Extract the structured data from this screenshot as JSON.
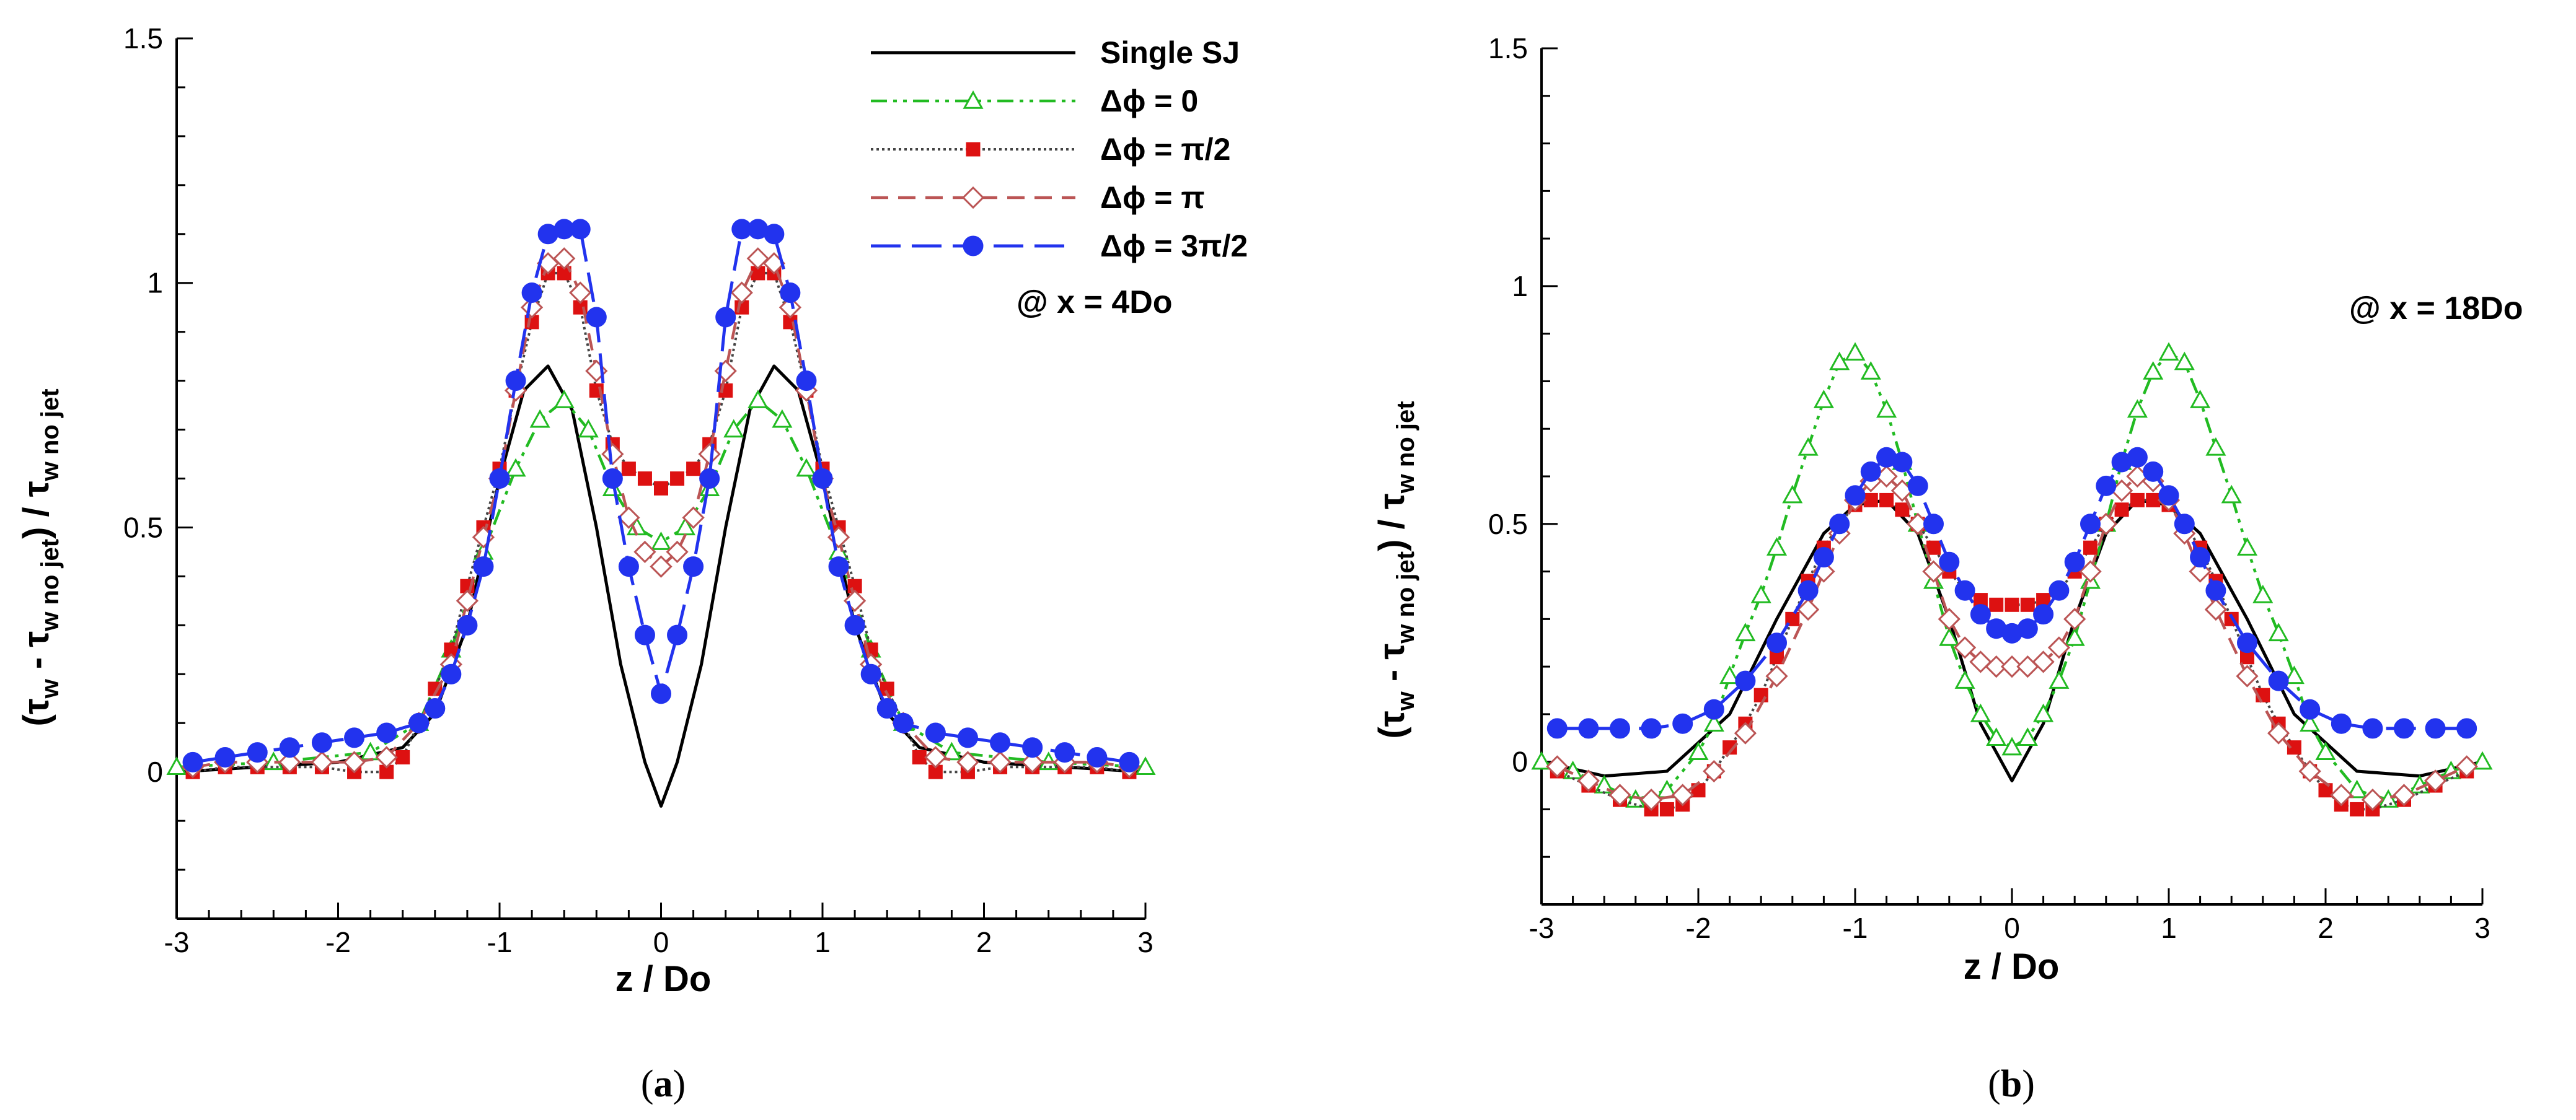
{
  "series_styles": [
    {
      "key": "single",
      "color": "#000000",
      "dash": "",
      "width": 5,
      "marker": "none",
      "legend": "Single SJ"
    },
    {
      "key": "p0",
      "color": "#22bb22",
      "dash": "26 10 6 10 6 10",
      "width": 4.5,
      "marker": "triangle",
      "legend": "Δϕ = 0"
    },
    {
      "key": "p90",
      "color": "#444444",
      "dash": "4 5",
      "width": 4,
      "marker": "square",
      "markerColor": "#dd1111",
      "legend": "Δϕ = π/2"
    },
    {
      "key": "p180",
      "color": "#bb5555",
      "dash": "28 16",
      "width": 4.5,
      "marker": "diamond",
      "legend": "Δϕ = π"
    },
    {
      "key": "p270",
      "color": "#2233ee",
      "dash": "48 18",
      "width": 5,
      "marker": "circle",
      "legend": "Δϕ = 3π/2"
    }
  ],
  "chart_data": [
    {
      "type": "line",
      "id": "a",
      "caption_label": "a",
      "annotation": "@ x = 4Do",
      "xlabel": "z / Do",
      "ylabel_main": "(τ",
      "ylabel_sub1": "w",
      "ylabel_mid": " - τ",
      "ylabel_sub2": "w no jet",
      "ylabel_end": ") / τ",
      "ylabel_sub3": "w no jet",
      "xlim": [
        -3,
        3
      ],
      "ylim": [
        -0.3,
        1.5
      ],
      "xticks": [
        -3,
        -2,
        -1,
        0,
        1,
        2,
        3
      ],
      "xtick_labels": [
        "-3",
        "-2",
        "-1",
        "0",
        "1",
        "2",
        "3"
      ],
      "yticks": [
        0,
        0.5,
        1,
        1.5
      ],
      "ytick_labels": [
        "0",
        "0.5",
        "1",
        "1.5"
      ],
      "series": {
        "single": {
          "x": [
            -3.0,
            -2.5,
            -2.0,
            -1.6,
            -1.4,
            -1.2,
            -1.0,
            -0.85,
            -0.7,
            -0.55,
            -0.4,
            -0.25,
            -0.1,
            0.0,
            0.1,
            0.25,
            0.4,
            0.55,
            0.7,
            0.85,
            1.0,
            1.2,
            1.4,
            1.6,
            2.0,
            2.5,
            3.0
          ],
          "y": [
            0.0,
            0.01,
            0.02,
            0.05,
            0.12,
            0.3,
            0.6,
            0.78,
            0.83,
            0.74,
            0.5,
            0.22,
            0.02,
            -0.07,
            0.02,
            0.22,
            0.5,
            0.74,
            0.83,
            0.78,
            0.6,
            0.3,
            0.12,
            0.05,
            0.02,
            0.01,
            0.0
          ]
        },
        "p0": {
          "x": [
            -3.0,
            -2.4,
            -1.8,
            -1.5,
            -1.3,
            -1.1,
            -0.9,
            -0.75,
            -0.6,
            -0.45,
            -0.3,
            -0.15,
            0.0,
            0.15,
            0.3,
            0.45,
            0.6,
            0.75,
            0.9,
            1.1,
            1.3,
            1.5,
            1.8,
            2.4,
            3.0
          ],
          "y": [
            0.01,
            0.02,
            0.04,
            0.1,
            0.25,
            0.45,
            0.62,
            0.72,
            0.76,
            0.7,
            0.58,
            0.5,
            0.47,
            0.5,
            0.58,
            0.7,
            0.76,
            0.72,
            0.62,
            0.45,
            0.25,
            0.1,
            0.04,
            0.02,
            0.01
          ]
        },
        "p90": {
          "x": [
            -2.9,
            -2.7,
            -2.5,
            -2.3,
            -2.1,
            -1.9,
            -1.7,
            -1.6,
            -1.5,
            -1.4,
            -1.3,
            -1.2,
            -1.1,
            -1.0,
            -0.9,
            -0.8,
            -0.7,
            -0.6,
            -0.5,
            -0.4,
            -0.3,
            -0.2,
            -0.1,
            0.0,
            0.1,
            0.2,
            0.3,
            0.4,
            0.5,
            0.6,
            0.7,
            0.8,
            0.9,
            1.0,
            1.1,
            1.2,
            1.3,
            1.4,
            1.5,
            1.6,
            1.7,
            1.9,
            2.1,
            2.3,
            2.5,
            2.7,
            2.9
          ],
          "y": [
            0.0,
            0.01,
            0.01,
            0.01,
            0.01,
            0.0,
            0.0,
            0.03,
            0.1,
            0.17,
            0.25,
            0.38,
            0.5,
            0.62,
            0.78,
            0.92,
            1.02,
            1.02,
            0.95,
            0.78,
            0.67,
            0.62,
            0.6,
            0.58,
            0.6,
            0.62,
            0.67,
            0.78,
            0.95,
            1.02,
            1.02,
            0.92,
            0.78,
            0.62,
            0.5,
            0.38,
            0.25,
            0.17,
            0.1,
            0.03,
            0.0,
            0.0,
            0.01,
            0.01,
            0.01,
            0.01,
            0.0
          ]
        },
        "p180": {
          "x": [
            -2.9,
            -2.7,
            -2.5,
            -2.3,
            -2.1,
            -1.9,
            -1.7,
            -1.5,
            -1.3,
            -1.2,
            -1.1,
            -1.0,
            -0.9,
            -0.8,
            -0.7,
            -0.6,
            -0.5,
            -0.4,
            -0.3,
            -0.2,
            -0.1,
            0.0,
            0.1,
            0.2,
            0.3,
            0.4,
            0.5,
            0.6,
            0.7,
            0.8,
            0.9,
            1.0,
            1.1,
            1.2,
            1.3,
            1.5,
            1.7,
            1.9,
            2.1,
            2.3,
            2.5,
            2.7,
            2.9
          ],
          "y": [
            0.01,
            0.02,
            0.02,
            0.02,
            0.02,
            0.02,
            0.03,
            0.1,
            0.22,
            0.35,
            0.48,
            0.6,
            0.78,
            0.95,
            1.04,
            1.05,
            0.98,
            0.82,
            0.65,
            0.52,
            0.45,
            0.42,
            0.45,
            0.52,
            0.65,
            0.82,
            0.98,
            1.05,
            1.04,
            0.95,
            0.78,
            0.6,
            0.48,
            0.35,
            0.22,
            0.1,
            0.03,
            0.02,
            0.02,
            0.02,
            0.02,
            0.02,
            0.01
          ]
        },
        "p270": {
          "x": [
            -2.9,
            -2.7,
            -2.5,
            -2.3,
            -2.1,
            -1.9,
            -1.7,
            -1.5,
            -1.4,
            -1.3,
            -1.2,
            -1.1,
            -1.0,
            -0.9,
            -0.8,
            -0.7,
            -0.6,
            -0.5,
            -0.4,
            -0.3,
            -0.2,
            -0.1,
            0.0,
            0.1,
            0.2,
            0.3,
            0.4,
            0.5,
            0.6,
            0.7,
            0.8,
            0.9,
            1.0,
            1.1,
            1.2,
            1.3,
            1.4,
            1.5,
            1.7,
            1.9,
            2.1,
            2.3,
            2.5,
            2.7,
            2.9
          ],
          "y": [
            0.02,
            0.03,
            0.04,
            0.05,
            0.06,
            0.07,
            0.08,
            0.1,
            0.13,
            0.2,
            0.3,
            0.42,
            0.6,
            0.8,
            0.98,
            1.1,
            1.11,
            1.11,
            0.93,
            0.6,
            0.42,
            0.28,
            0.16,
            0.28,
            0.42,
            0.6,
            0.93,
            1.11,
            1.11,
            1.1,
            0.98,
            0.8,
            0.6,
            0.42,
            0.3,
            0.2,
            0.13,
            0.1,
            0.08,
            0.07,
            0.06,
            0.05,
            0.04,
            0.03,
            0.02
          ]
        }
      }
    },
    {
      "type": "line",
      "id": "b",
      "caption_label": "b",
      "annotation": "@ x = 18Do",
      "xlabel": "z / Do",
      "ylabel_main": "(τ",
      "ylabel_sub1": "w",
      "ylabel_mid": " - τ",
      "ylabel_sub2": "w no jet",
      "ylabel_end": ") / τ",
      "ylabel_sub3": "w no jet",
      "xlim": [
        -3,
        3
      ],
      "ylim": [
        -0.3,
        1.5
      ],
      "xticks": [
        -3,
        -2,
        -1,
        0,
        1,
        2,
        3
      ],
      "xtick_labels": [
        "-3",
        "-2",
        "-1",
        "0",
        "1",
        "2",
        "3"
      ],
      "yticks": [
        0,
        0.5,
        1,
        1.5
      ],
      "ytick_labels": [
        "0",
        "0.5",
        "1",
        "1.5"
      ],
      "series": {
        "single": {
          "x": [
            -3.0,
            -2.6,
            -2.2,
            -1.8,
            -1.5,
            -1.2,
            -1.0,
            -0.8,
            -0.6,
            -0.4,
            -0.2,
            0.0,
            0.2,
            0.4,
            0.6,
            0.8,
            1.0,
            1.2,
            1.5,
            1.8,
            2.2,
            2.6,
            3.0
          ],
          "y": [
            0.0,
            -0.03,
            -0.02,
            0.1,
            0.3,
            0.48,
            0.54,
            0.55,
            0.48,
            0.3,
            0.08,
            -0.04,
            0.08,
            0.3,
            0.48,
            0.55,
            0.54,
            0.48,
            0.3,
            0.1,
            -0.02,
            -0.03,
            0.0
          ]
        },
        "p0": {
          "x": [
            -3.0,
            -2.8,
            -2.6,
            -2.4,
            -2.2,
            -2.0,
            -1.9,
            -1.8,
            -1.7,
            -1.6,
            -1.5,
            -1.4,
            -1.3,
            -1.2,
            -1.1,
            -1.0,
            -0.9,
            -0.8,
            -0.7,
            -0.6,
            -0.5,
            -0.4,
            -0.3,
            -0.2,
            -0.1,
            0.0,
            0.1,
            0.2,
            0.3,
            0.4,
            0.5,
            0.6,
            0.7,
            0.8,
            0.9,
            1.0,
            1.1,
            1.2,
            1.3,
            1.4,
            1.5,
            1.6,
            1.7,
            1.8,
            1.9,
            2.0,
            2.2,
            2.4,
            2.6,
            2.8,
            3.0
          ],
          "y": [
            0.0,
            -0.02,
            -0.05,
            -0.08,
            -0.06,
            0.02,
            0.08,
            0.18,
            0.27,
            0.35,
            0.45,
            0.56,
            0.66,
            0.76,
            0.84,
            0.86,
            0.82,
            0.74,
            0.63,
            0.5,
            0.38,
            0.26,
            0.17,
            0.1,
            0.05,
            0.03,
            0.05,
            0.1,
            0.17,
            0.26,
            0.38,
            0.5,
            0.63,
            0.74,
            0.82,
            0.86,
            0.84,
            0.76,
            0.66,
            0.56,
            0.45,
            0.35,
            0.27,
            0.18,
            0.08,
            0.02,
            -0.06,
            -0.08,
            -0.05,
            -0.02,
            0.0
          ]
        },
        "p90": {
          "x": [
            -2.9,
            -2.7,
            -2.5,
            -2.3,
            -2.2,
            -2.1,
            -2.0,
            -1.9,
            -1.8,
            -1.7,
            -1.6,
            -1.5,
            -1.4,
            -1.3,
            -1.2,
            -1.1,
            -1.0,
            -0.9,
            -0.8,
            -0.7,
            -0.6,
            -0.5,
            -0.4,
            -0.3,
            -0.2,
            -0.1,
            0.0,
            0.1,
            0.2,
            0.3,
            0.4,
            0.5,
            0.6,
            0.7,
            0.8,
            0.9,
            1.0,
            1.1,
            1.2,
            1.3,
            1.4,
            1.5,
            1.6,
            1.7,
            1.8,
            1.9,
            2.0,
            2.1,
            2.2,
            2.3,
            2.5,
            2.7,
            2.9
          ],
          "y": [
            -0.02,
            -0.05,
            -0.08,
            -0.1,
            -0.1,
            -0.09,
            -0.06,
            -0.02,
            0.03,
            0.08,
            0.14,
            0.22,
            0.3,
            0.38,
            0.45,
            0.5,
            0.54,
            0.55,
            0.55,
            0.53,
            0.5,
            0.45,
            0.4,
            0.36,
            0.34,
            0.33,
            0.33,
            0.33,
            0.34,
            0.36,
            0.4,
            0.45,
            0.5,
            0.53,
            0.55,
            0.55,
            0.54,
            0.5,
            0.45,
            0.38,
            0.3,
            0.22,
            0.14,
            0.08,
            0.03,
            -0.02,
            -0.06,
            -0.09,
            -0.1,
            -0.1,
            -0.08,
            -0.05,
            -0.02
          ]
        },
        "p180": {
          "x": [
            -2.9,
            -2.7,
            -2.5,
            -2.3,
            -2.1,
            -1.9,
            -1.7,
            -1.5,
            -1.3,
            -1.2,
            -1.1,
            -1.0,
            -0.9,
            -0.8,
            -0.7,
            -0.6,
            -0.5,
            -0.4,
            -0.3,
            -0.2,
            -0.1,
            0.0,
            0.1,
            0.2,
            0.3,
            0.4,
            0.5,
            0.6,
            0.7,
            0.8,
            0.9,
            1.0,
            1.1,
            1.2,
            1.3,
            1.5,
            1.7,
            1.9,
            2.1,
            2.3,
            2.5,
            2.7,
            2.9
          ],
          "y": [
            -0.01,
            -0.04,
            -0.07,
            -0.08,
            -0.07,
            -0.02,
            0.06,
            0.18,
            0.32,
            0.4,
            0.48,
            0.55,
            0.59,
            0.6,
            0.57,
            0.5,
            0.4,
            0.3,
            0.24,
            0.21,
            0.2,
            0.2,
            0.2,
            0.21,
            0.24,
            0.3,
            0.4,
            0.5,
            0.57,
            0.6,
            0.59,
            0.55,
            0.48,
            0.4,
            0.32,
            0.18,
            0.06,
            -0.02,
            -0.07,
            -0.08,
            -0.07,
            -0.04,
            -0.01
          ]
        },
        "p270": {
          "x": [
            -2.9,
            -2.7,
            -2.5,
            -2.3,
            -2.1,
            -1.9,
            -1.7,
            -1.5,
            -1.3,
            -1.2,
            -1.1,
            -1.0,
            -0.9,
            -0.8,
            -0.7,
            -0.6,
            -0.5,
            -0.4,
            -0.3,
            -0.2,
            -0.1,
            0.0,
            0.1,
            0.2,
            0.3,
            0.4,
            0.5,
            0.6,
            0.7,
            0.8,
            0.9,
            1.0,
            1.1,
            1.2,
            1.3,
            1.5,
            1.7,
            1.9,
            2.1,
            2.3,
            2.5,
            2.7,
            2.9
          ],
          "y": [
            0.07,
            0.07,
            0.07,
            0.07,
            0.08,
            0.11,
            0.17,
            0.25,
            0.36,
            0.43,
            0.5,
            0.56,
            0.61,
            0.64,
            0.63,
            0.58,
            0.5,
            0.42,
            0.36,
            0.31,
            0.28,
            0.27,
            0.28,
            0.31,
            0.36,
            0.42,
            0.5,
            0.58,
            0.63,
            0.64,
            0.61,
            0.56,
            0.5,
            0.43,
            0.36,
            0.25,
            0.17,
            0.11,
            0.08,
            0.07,
            0.07,
            0.07,
            0.07
          ]
        }
      }
    }
  ]
}
